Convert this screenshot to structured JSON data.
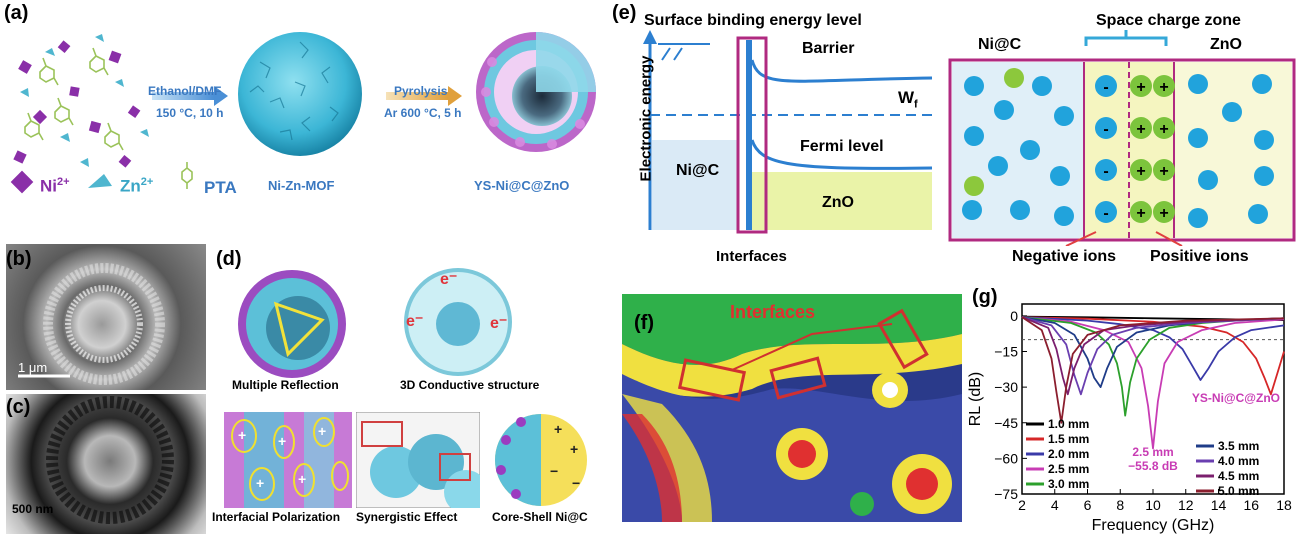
{
  "panel_a": {
    "label": "(a)",
    "arrow1_top": "Ethanol/DMF",
    "arrow1_bottom": "150 °C, 10 h",
    "arrow2_top": "Pyrolysis",
    "arrow2_bottom": "Ar 600 °C, 5 h",
    "legend_ni": "Ni",
    "legend_ni_sup": "2+",
    "legend_zn": "Zn",
    "legend_zn_sup": "2+",
    "legend_pta": "PTA",
    "mof_label": "Ni-Zn-MOF",
    "product_label": "YS-Ni@C@ZnO"
  },
  "panel_b": {
    "label": "(b)",
    "scale": "1 μm"
  },
  "panel_c": {
    "label": "(c)",
    "scale": "500 nm"
  },
  "panel_d": {
    "label": "(d)",
    "multiple_reflection": "Multiple Reflection",
    "conductive": "3D Conductive structure",
    "electron": "e",
    "interfacial": "Interfacial Polarization",
    "synergistic": "Synergistic Effect",
    "core_shell": "Core-Shell Ni@C"
  },
  "panel_e": {
    "label": "(e)",
    "surface_binding": "Surface binding energy level",
    "barrier": "Barrier",
    "wf": "W",
    "wf_sub": "f",
    "fermi": "Fermi level",
    "nic": "Ni@C",
    "zno": "ZnO",
    "y_axis": "Electronic energy",
    "interfaces": "Interfaces",
    "space_charge": "Space charge zone",
    "right_nic": "Ni@C",
    "right_zno": "ZnO",
    "negative_ions": "Negative ions",
    "positive_ions": "Positive ions"
  },
  "panel_f": {
    "label": "(f)",
    "interfaces": "Interfaces"
  },
  "panel_g": {
    "label": "(g)"
  },
  "chart_data": {
    "type": "line",
    "xlabel": "Frequency (GHz)",
    "ylabel": "RL (dB)",
    "xlim": [
      2,
      18
    ],
    "ylim": [
      -75,
      5
    ],
    "xticks": [
      2,
      4,
      6,
      8,
      10,
      12,
      14,
      16,
      18
    ],
    "yticks": [
      0,
      -15,
      -30,
      -45,
      -60,
      -75
    ],
    "reference_line": -10,
    "annotation_sample": "YS-Ni@C@ZnO",
    "annotation_peak_thickness": "2.5 mm",
    "annotation_peak_value": "−55.8 dB",
    "legend_placement": "bottom",
    "series": [
      {
        "name": "1.0 mm",
        "color": "#000000",
        "x": [
          2,
          6,
          10,
          14,
          18
        ],
        "y": [
          -0.3,
          -0.6,
          -1.0,
          -1.4,
          -1.8
        ]
      },
      {
        "name": "1.5 mm",
        "color": "#d62728",
        "x": [
          2,
          6,
          10,
          13,
          14.5,
          15.5,
          16.3,
          16.8,
          17.2,
          17.6,
          18
        ],
        "y": [
          -0.5,
          -1.2,
          -2.5,
          -4.5,
          -7,
          -11,
          -18,
          -26,
          -33,
          -24,
          -15
        ]
      },
      {
        "name": "2.0 mm",
        "color": "#3a3aa8",
        "x": [
          2,
          6,
          8,
          10,
          11,
          11.8,
          12.4,
          12.9,
          13.4,
          14,
          15,
          16,
          18
        ],
        "y": [
          -0.5,
          -2,
          -3.5,
          -6,
          -9,
          -14,
          -21,
          -27,
          -22,
          -15,
          -9,
          -6,
          -4
        ]
      },
      {
        "name": "2.5 mm",
        "color": "#c83cb4",
        "x": [
          2,
          5,
          7,
          8.5,
          9.3,
          9.7,
          10.0,
          10.3,
          10.7,
          11.5,
          13,
          15,
          18
        ],
        "y": [
          -0.5,
          -2.5,
          -6,
          -11,
          -22,
          -38,
          -55.8,
          -36,
          -20,
          -11,
          -6,
          -3,
          -1.5
        ]
      },
      {
        "name": "3.0 mm",
        "color": "#2ca02c",
        "x": [
          2,
          5,
          6.5,
          7.3,
          7.8,
          8.1,
          8.3,
          8.6,
          9.0,
          9.8,
          11,
          13,
          15,
          18
        ],
        "y": [
          -0.5,
          -3,
          -7,
          -12,
          -20,
          -30,
          -42,
          -28,
          -18,
          -10,
          -5,
          -3,
          -2,
          -1
        ]
      },
      {
        "name": "3.5 mm",
        "color": "#1f3c88",
        "x": [
          2,
          4,
          5.2,
          6.0,
          6.4,
          6.8,
          7.2,
          7.8,
          9,
          11,
          14,
          18
        ],
        "y": [
          -0.5,
          -3,
          -8,
          -18,
          -26,
          -30,
          -22,
          -13,
          -7,
          -4,
          -2,
          -1
        ]
      },
      {
        "name": "4.0 mm",
        "color": "#6a3fb0",
        "x": [
          2,
          3.8,
          4.7,
          5.2,
          5.6,
          6.0,
          6.6,
          7.5,
          9,
          12,
          18
        ],
        "y": [
          -0.5,
          -4,
          -12,
          -25,
          -33,
          -24,
          -14,
          -8,
          -5,
          -3,
          -1
        ]
      },
      {
        "name": "4.5 mm",
        "color": "#7b1f6e",
        "x": [
          2,
          3.6,
          4.1,
          4.5,
          4.8,
          5.2,
          5.8,
          7,
          9,
          12,
          18
        ],
        "y": [
          -0.5,
          -5,
          -14,
          -26,
          -33,
          -22,
          -12,
          -6,
          -4,
          -2.5,
          -1
        ]
      },
      {
        "name": "5.0 mm",
        "color": "#8b1e2e",
        "x": [
          2,
          3.2,
          3.8,
          4.1,
          4.4,
          4.7,
          5.1,
          6,
          8,
          12,
          18
        ],
        "y": [
          -0.5,
          -6,
          -18,
          -32,
          -45,
          -30,
          -16,
          -8,
          -4,
          -2,
          -1
        ]
      }
    ]
  }
}
